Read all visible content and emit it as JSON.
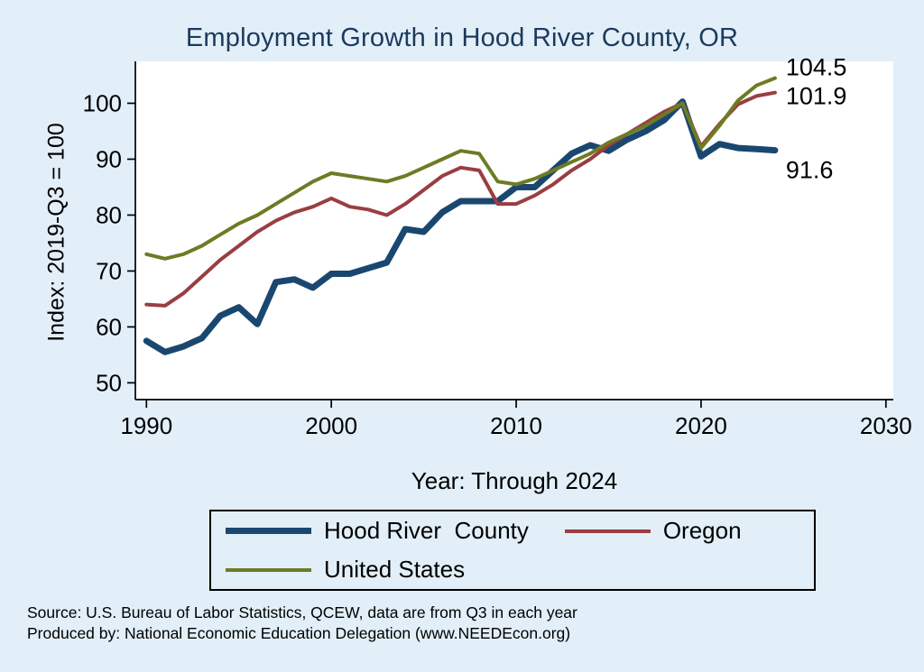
{
  "page": {
    "background": "#e2eff8"
  },
  "chart_data": {
    "type": "line",
    "title": "Employment Growth in Hood River County, OR",
    "xlabel": "Year: Through 2024",
    "ylabel": "Index: 2019-Q3 = 100",
    "xlim": [
      1989.4,
      2030.4
    ],
    "ylim": [
      47,
      107.5
    ],
    "xticks": [
      1990,
      2000,
      2010,
      2020,
      2030
    ],
    "yticks": [
      50,
      60,
      70,
      80,
      90,
      100
    ],
    "grid": false,
    "legend_position": "bottom",
    "x": [
      1990,
      1991,
      1992,
      1993,
      1994,
      1995,
      1996,
      1997,
      1998,
      1999,
      2000,
      2001,
      2002,
      2003,
      2004,
      2005,
      2006,
      2007,
      2008,
      2009,
      2010,
      2011,
      2012,
      2013,
      2014,
      2015,
      2016,
      2017,
      2018,
      2019,
      2020,
      2021,
      2022,
      2023,
      2024
    ],
    "series": [
      {
        "name": "Hood River  County",
        "color": "#1a476f",
        "width": 7,
        "end_label": "91.6",
        "values": [
          57.5,
          55.5,
          56.5,
          58.0,
          62.0,
          63.5,
          60.5,
          68.0,
          68.5,
          67.0,
          69.5,
          69.5,
          70.5,
          71.5,
          77.5,
          77.0,
          80.5,
          82.5,
          82.5,
          82.5,
          85.0,
          85.0,
          88.0,
          91.0,
          92.5,
          91.5,
          93.5,
          95.0,
          97.0,
          100.3,
          90.5,
          92.7,
          92.0,
          91.8,
          91.6
        ]
      },
      {
        "name": "Oregon",
        "color": "#9a3e41",
        "width": 4,
        "end_label": "101.9",
        "values": [
          64.0,
          63.8,
          66.0,
          69.0,
          72.0,
          74.5,
          77.0,
          79.0,
          80.5,
          81.5,
          83.0,
          81.5,
          81.0,
          80.0,
          82.0,
          84.5,
          87.0,
          88.5,
          88.0,
          82.0,
          82.0,
          83.5,
          85.5,
          88.0,
          90.0,
          92.5,
          94.5,
          96.5,
          98.5,
          100.0,
          92.3,
          96.3,
          99.8,
          101.3,
          101.9
        ]
      },
      {
        "name": "United States",
        "color": "#6e7b24",
        "width": 4,
        "end_label": "104.5",
        "values": [
          73.0,
          72.2,
          73.0,
          74.5,
          76.5,
          78.5,
          80.0,
          82.0,
          84.0,
          86.0,
          87.5,
          87.0,
          86.5,
          86.0,
          87.0,
          88.5,
          90.0,
          91.5,
          91.0,
          86.0,
          85.5,
          86.5,
          88.0,
          89.5,
          91.0,
          93.0,
          94.5,
          96.0,
          98.0,
          100.0,
          92.0,
          96.0,
          100.5,
          103.2,
          104.5
        ]
      }
    ],
    "end_label_offsets": {
      "91.6": 22,
      "101.9": 4,
      "104.5": -12
    },
    "source_line1": "Source: U.S. Bureau of Labor Statistics, QCEW, data are from Q3 in each year",
    "source_line2": "Produced by: National Economic Education Delegation (www.NEEDEcon.org)"
  }
}
